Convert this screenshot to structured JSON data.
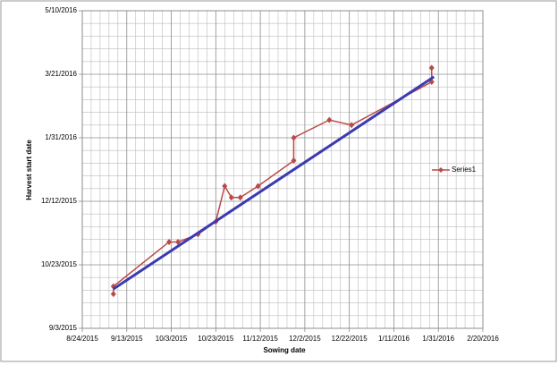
{
  "chart_data": {
    "type": "scatter",
    "xlabel": "Sowing date",
    "ylabel": "Harvest start date",
    "xlim": [
      "8/24/2015",
      "2/20/2016"
    ],
    "xticks": [
      "8/24/2015",
      "9/13/2015",
      "10/3/2015",
      "10/23/2015",
      "11/12/2015",
      "12/2/2015",
      "12/22/2015",
      "1/11/2016",
      "1/31/2016",
      "2/20/2016"
    ],
    "ylim": [
      "9/3/2015",
      "5/10/2016"
    ],
    "yticks": [
      "9/3/2015",
      "10/23/2015",
      "12/12/2015",
      "1/31/2016",
      "3/21/2016",
      "5/10/2016"
    ],
    "grid": true,
    "legend": "right",
    "series": [
      {
        "name": "Series1",
        "color": "#b94a48",
        "x": [
          "9/7/2015",
          "9/7/2015",
          "10/2/2015",
          "10/6/2015",
          "10/15/2015",
          "10/23/2015",
          "10/27/2015",
          "10/30/2015",
          "11/3/2015",
          "11/11/2015",
          "11/27/2015",
          "11/27/2015",
          "12/13/2015",
          "12/23/2015",
          "1/28/2016",
          "1/28/2016"
        ],
        "values": [
          "9/30/2015",
          "10/6/2015",
          "11/10/2015",
          "11/10/2015",
          "11/16/2015",
          "11/26/2015",
          "12/24/2015",
          "12/15/2015",
          "12/15/2015",
          "12/24/2015",
          "1/13/2016",
          "1/31/2016",
          "2/14/2016",
          "2/10/2016",
          "3/15/2016",
          "3/26/2016"
        ]
      }
    ],
    "trendline": {
      "color": "#3b3bb0",
      "x": [
        "9/7/2015",
        "1/29/2016"
      ],
      "values": [
        "10/4/2015",
        "3/19/2016"
      ]
    }
  }
}
